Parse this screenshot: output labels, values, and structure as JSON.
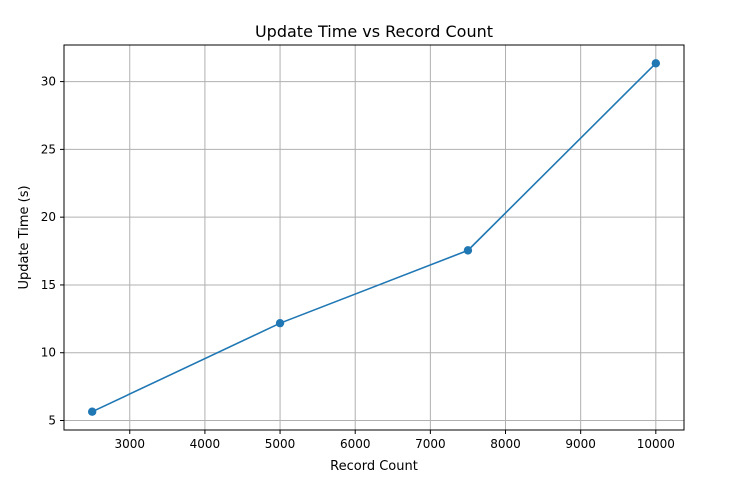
{
  "chart_data": {
    "type": "line",
    "title": "Update Time vs Record Count",
    "xlabel": "Record Count",
    "ylabel": "Update Time (s)",
    "x": [
      2500,
      5000,
      7500,
      10000
    ],
    "series": [
      {
        "values": [
          5.65,
          12.18,
          17.55,
          31.35
        ],
        "color": "#1f77b4",
        "marker": "circle"
      }
    ],
    "xlim": [
      2125,
      10375
    ],
    "ylim": [
      4.3,
      32.7
    ],
    "xticks": [
      3000,
      4000,
      5000,
      6000,
      7000,
      8000,
      9000,
      10000
    ],
    "yticks": [
      5,
      10,
      15,
      20,
      25,
      30
    ],
    "grid": true
  }
}
